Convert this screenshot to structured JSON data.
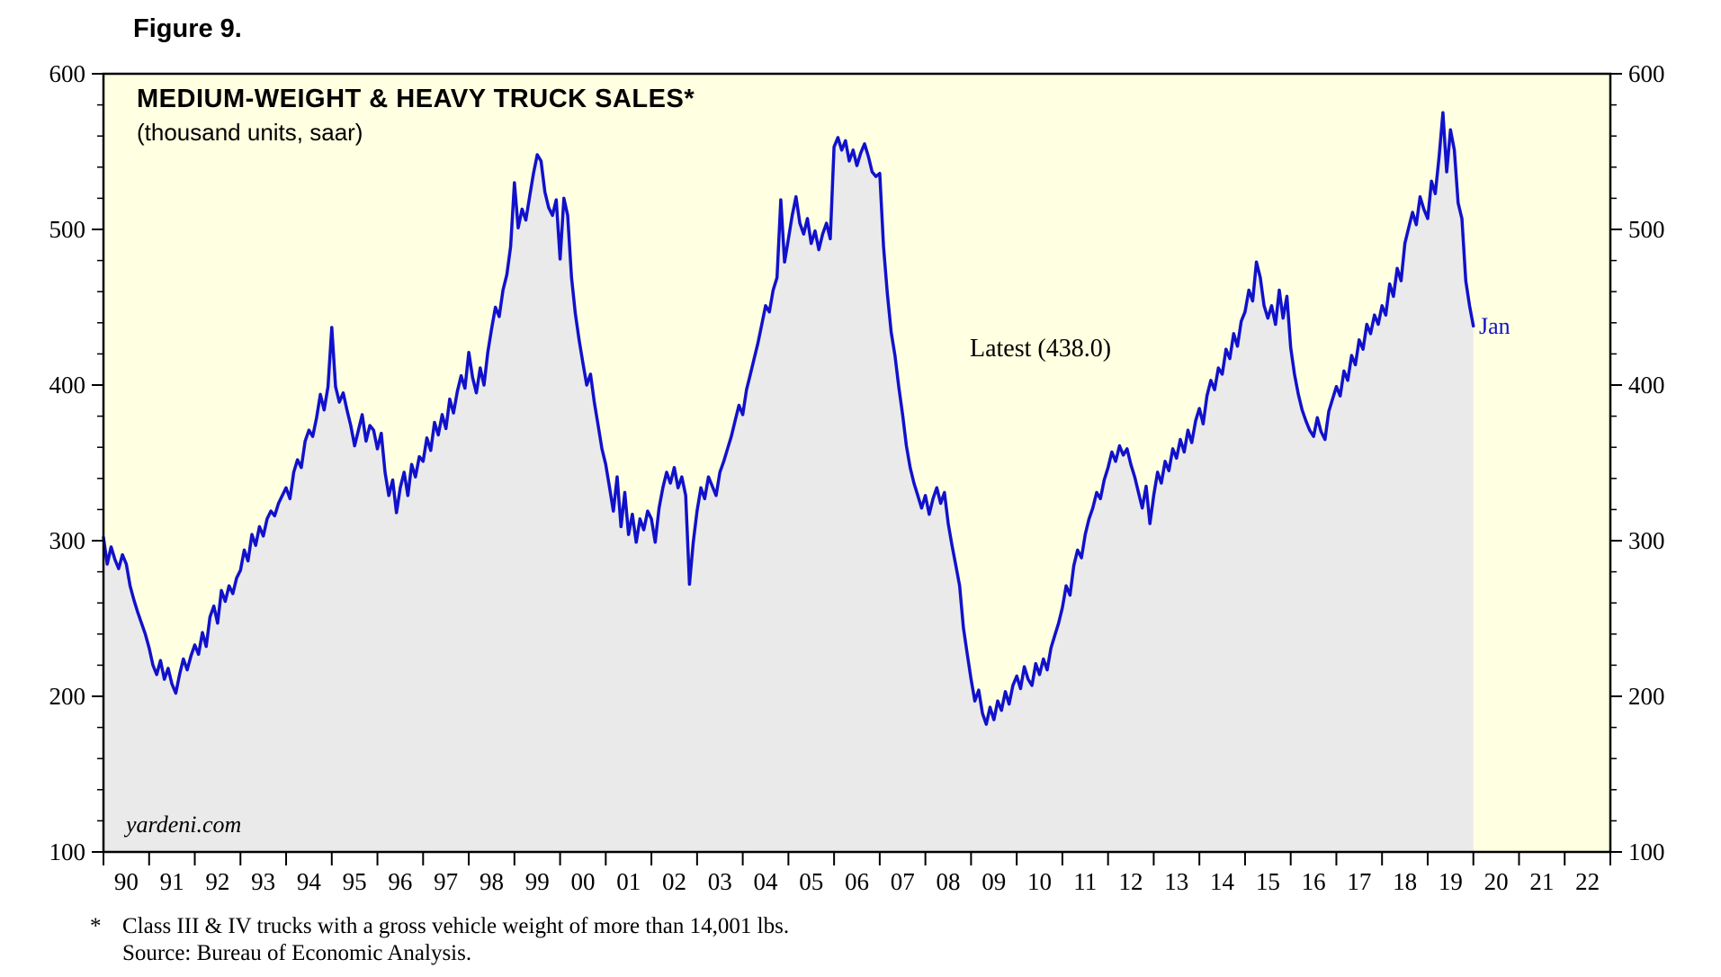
{
  "figure_label": "Figure 9.",
  "chart_data": {
    "type": "line",
    "title": "MEDIUM-WEIGHT & HEAVY TRUCK SALES*",
    "subtitle": "(thousand units, saar)",
    "annotation": "Latest (438.0)",
    "watermark": "yardeni.com",
    "ylim": [
      100,
      600
    ],
    "y_major_step": 100,
    "y_minor_step": 20,
    "x_start_year": 1990,
    "x_end_year": 2023,
    "x_tick_labels": [
      "90",
      "91",
      "92",
      "93",
      "94",
      "95",
      "96",
      "97",
      "98",
      "99",
      "00",
      "01",
      "02",
      "03",
      "04",
      "05",
      "06",
      "07",
      "08",
      "09",
      "10",
      "11",
      "12",
      "13",
      "14",
      "15",
      "16",
      "17",
      "18",
      "19",
      "20",
      "21",
      "22"
    ],
    "frequency": "monthly",
    "latest": {
      "label": "Jan",
      "value": 438.0
    },
    "colors": {
      "line": "#1111CC",
      "area_fill": "#EAEAEA",
      "plot_background": "#FFFFE1",
      "axis": "#000000",
      "end_label": "#1111CC"
    },
    "legend": "none",
    "grid": "off",
    "series": [
      {
        "name": "Medium-weight & heavy truck sales (thousand units, saar)",
        "start": "1990-01",
        "end": "2020-01",
        "values": [
          302,
          285,
          296,
          288,
          282,
          291,
          285,
          271,
          262,
          254,
          247,
          240,
          231,
          220,
          214,
          223,
          211,
          218,
          208,
          202,
          214,
          224,
          217,
          226,
          233,
          227,
          241,
          232,
          251,
          258,
          247,
          268,
          261,
          271,
          266,
          276,
          281,
          294,
          287,
          304,
          297,
          309,
          303,
          314,
          319,
          316,
          324,
          329,
          334,
          327,
          344,
          352,
          347,
          364,
          371,
          367,
          379,
          394,
          384,
          399,
          437,
          399,
          389,
          395,
          384,
          374,
          361,
          371,
          381,
          364,
          374,
          371,
          359,
          369,
          344,
          329,
          339,
          318,
          334,
          344,
          329,
          349,
          341,
          354,
          351,
          366,
          358,
          376,
          368,
          381,
          372,
          391,
          382,
          396,
          406,
          398,
          421,
          405,
          395,
          411,
          400,
          421,
          436,
          450,
          444,
          461,
          471,
          489,
          530,
          501,
          513,
          506,
          521,
          536,
          548,
          544,
          524,
          514,
          509,
          519,
          481,
          520,
          509,
          469,
          446,
          429,
          414,
          400,
          407,
          389,
          374,
          359,
          349,
          334,
          319,
          341,
          309,
          331,
          304,
          317,
          299,
          314,
          307,
          319,
          314,
          299,
          321,
          334,
          344,
          337,
          347,
          334,
          341,
          329,
          272,
          299,
          319,
          334,
          327,
          341,
          335,
          329,
          344,
          351,
          359,
          367,
          377,
          387,
          381,
          397,
          407,
          417,
          427,
          439,
          451,
          447,
          461,
          469,
          519,
          479,
          494,
          509,
          521,
          504,
          497,
          507,
          491,
          499,
          487,
          497,
          504,
          494,
          553,
          559,
          551,
          557,
          544,
          551,
          541,
          549,
          555,
          547,
          537,
          534,
          536,
          489,
          459,
          434,
          419,
          399,
          381,
          361,
          347,
          337,
          329,
          321,
          329,
          317,
          327,
          334,
          324,
          331,
          311,
          297,
          284,
          271,
          244,
          227,
          211,
          197,
          204,
          189,
          182,
          193,
          185,
          197,
          191,
          203,
          195,
          207,
          213,
          205,
          219,
          211,
          207,
          221,
          214,
          224,
          217,
          231,
          239,
          247,
          257,
          271,
          265,
          284,
          294,
          289,
          304,
          314,
          321,
          331,
          327,
          339,
          347,
          357,
          351,
          361,
          355,
          359,
          349,
          341,
          331,
          321,
          335,
          311,
          329,
          344,
          337,
          351,
          345,
          359,
          353,
          365,
          357,
          371,
          363,
          377,
          385,
          375,
          393,
          403,
          397,
          411,
          407,
          423,
          417,
          433,
          425,
          441,
          447,
          461,
          454,
          479,
          469,
          451,
          443,
          451,
          439,
          461,
          443,
          457,
          424,
          407,
          394,
          384,
          377,
          371,
          367,
          379,
          370,
          365,
          383,
          391,
          399,
          393,
          409,
          403,
          419,
          413,
          429,
          423,
          439,
          433,
          445,
          439,
          451,
          445,
          465,
          457,
          475,
          467,
          491,
          501,
          511,
          503,
          521,
          513,
          507,
          531,
          523,
          547,
          575,
          537,
          564,
          551,
          517,
          507,
          467,
          451,
          438
        ]
      }
    ]
  },
  "footnotes": {
    "marker": "*",
    "line1": "Class III & IV trucks with a gross vehicle weight of more than 14,001 lbs.",
    "line2": "Source: Bureau of Economic Analysis."
  }
}
